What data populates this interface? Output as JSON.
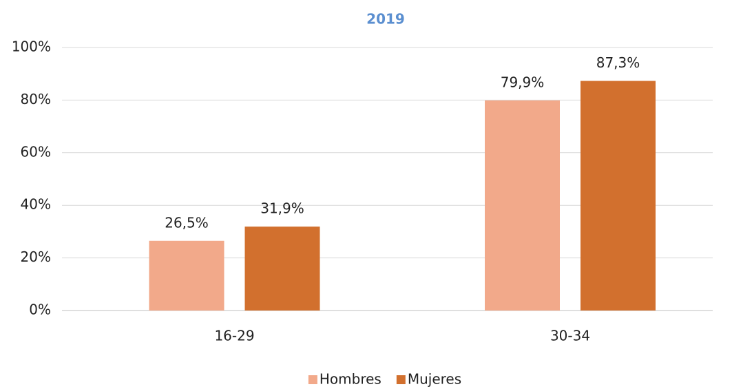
{
  "chart_data": {
    "type": "bar",
    "title": "2019",
    "categories": [
      "16-29",
      "30-34"
    ],
    "series": [
      {
        "name": "Hombres",
        "color": "#f2a98a",
        "values": [
          26.5,
          79.9
        ],
        "value_labels": [
          "26,5%",
          "79,9%"
        ]
      },
      {
        "name": "Mujeres",
        "color": "#d2702e",
        "values": [
          31.9,
          87.3
        ],
        "value_labels": [
          "31,9%",
          "87,3%"
        ]
      }
    ],
    "ylim": [
      0,
      100
    ],
    "yticks": [
      {
        "value": 0,
        "label": "0%"
      },
      {
        "value": 20,
        "label": "20%"
      },
      {
        "value": 40,
        "label": "40%"
      },
      {
        "value": 60,
        "label": "60%"
      },
      {
        "value": 80,
        "label": "80%"
      },
      {
        "value": 100,
        "label": "100%"
      }
    ],
    "grid": true,
    "legend": "bottom"
  }
}
